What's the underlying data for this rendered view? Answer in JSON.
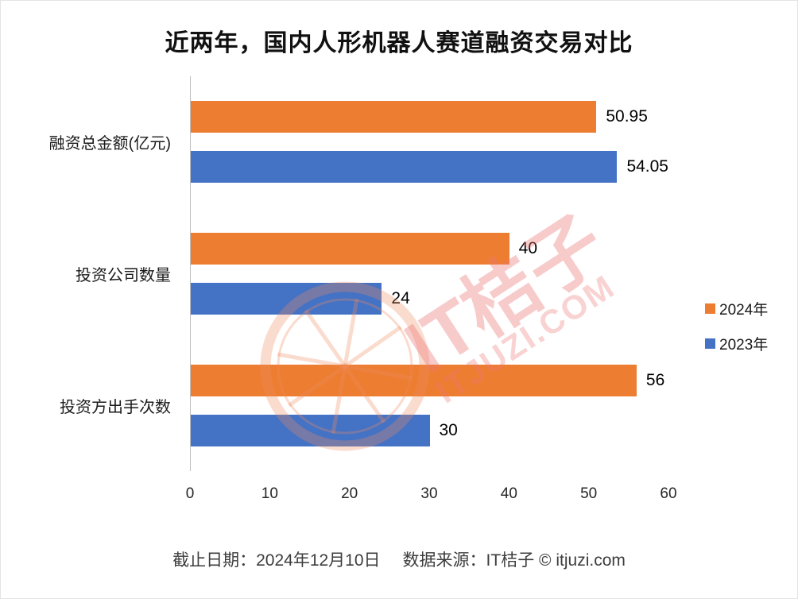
{
  "title": "近两年，国内人形机器人赛道融资交易对比",
  "footer": {
    "left": "截止日期：2024年12月10日",
    "right": "数据来源：IT桔子 © itjuzi.com"
  },
  "watermark": {
    "line1": "IT桔子",
    "line2": "ITJUZI.COM"
  },
  "colors": {
    "series_2024": "#ED7D31",
    "series_2023": "#4472C4",
    "watermark_pink": "#EC7676",
    "axis_line": "#BFBFBF"
  },
  "chart_data": {
    "type": "bar",
    "orientation": "horizontal",
    "title": "近两年，国内人形机器人赛道融资交易对比",
    "categories": [
      "融资总金额(亿元)",
      "投资公司数量",
      "投资方出手次数"
    ],
    "series": [
      {
        "name": "2024年",
        "color": "#ED7D31",
        "values": [
          50.95,
          40,
          56
        ]
      },
      {
        "name": "2023年",
        "color": "#4472C4",
        "values": [
          54.05,
          24,
          30
        ]
      }
    ],
    "xlim": [
      0,
      60
    ],
    "x_ticks": [
      0,
      10,
      20,
      30,
      40,
      50,
      60
    ],
    "xlabel": "",
    "ylabel": "",
    "grid": false,
    "legend_position": "right",
    "value_labels": true
  }
}
